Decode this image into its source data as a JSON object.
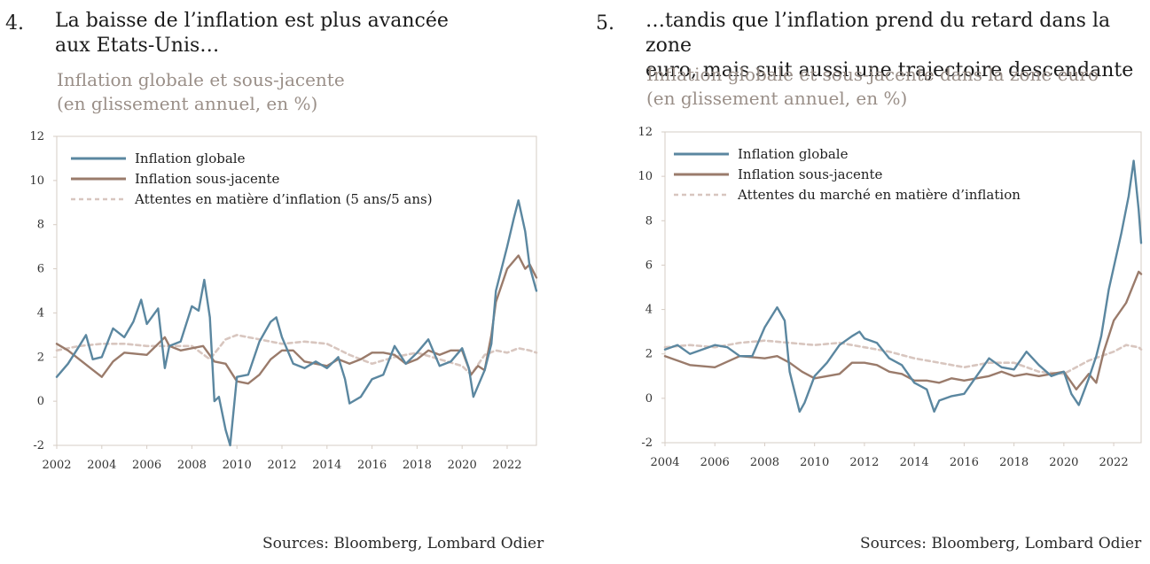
{
  "left": {
    "number": "4.",
    "title_line1": "La baisse de l’inflation est plus avancée",
    "title_line2": "aux Etats-Unis…",
    "subtitle_line1": "Inflation globale et sous-jacente",
    "subtitle_line2": "(en glissement annuel, en %)",
    "source": "Sources: Bloomberg, Lombard Odier"
  },
  "right": {
    "number": "5.",
    "title_line1": "…tandis que l’inflation prend du retard dans la zone",
    "title_line2": "euro, mais suit aussi une trajectoire descendante",
    "subtitle_line1": "Inflation globale et sous-jacente dans la zone euro",
    "subtitle_line2": "(en glissement annuel, en %)",
    "source": "Sources: Bloomberg, Lombard Odier"
  },
  "colors": {
    "headline": "#5b87a0",
    "core": "#9a7b6b",
    "expectations": "#d8c6bf",
    "frame": "#d6ccc4"
  },
  "chart_data": [
    {
      "type": "line",
      "xlim": [
        2002,
        2023.3
      ],
      "ylim": [
        -2,
        12
      ],
      "xticks": [
        2002,
        2004,
        2006,
        2008,
        2010,
        2012,
        2014,
        2016,
        2018,
        2020,
        2022
      ],
      "yticks": [
        -2,
        0,
        2,
        4,
        6,
        8,
        10,
        12
      ],
      "legend_position": "top-left",
      "series": [
        {
          "name": "Inflation globale",
          "style": "solid",
          "x": [
            2002,
            2002.5,
            2003,
            2003.3,
            2003.6,
            2004,
            2004.5,
            2005,
            2005.4,
            2005.75,
            2006,
            2006.5,
            2006.8,
            2007,
            2007.5,
            2008,
            2008.3,
            2008.55,
            2008.8,
            2009,
            2009.2,
            2009.5,
            2009.7,
            2010,
            2010.5,
            2011,
            2011.5,
            2011.75,
            2012,
            2012.5,
            2013,
            2013.5,
            2014,
            2014.5,
            2014.8,
            2015,
            2015.5,
            2016,
            2016.5,
            2017,
            2017.5,
            2018,
            2018.5,
            2019,
            2019.5,
            2020,
            2020.3,
            2020.5,
            2021,
            2021.3,
            2021.5,
            2022,
            2022.3,
            2022.5,
            2022.8,
            2023,
            2023.3
          ],
          "y": [
            1.1,
            1.7,
            2.5,
            3,
            1.9,
            2,
            3.3,
            2.9,
            3.6,
            4.6,
            3.5,
            4.2,
            1.5,
            2.5,
            2.7,
            4.3,
            4.1,
            5.5,
            3.8,
            0,
            0.2,
            -1.3,
            -2,
            1.1,
            1.2,
            2.7,
            3.6,
            3.8,
            2.9,
            1.7,
            1.5,
            1.8,
            1.5,
            2,
            1,
            -0.1,
            0.2,
            1,
            1.2,
            2.5,
            1.7,
            2.2,
            2.8,
            1.6,
            1.8,
            2.4,
            1.5,
            0.2,
            1.4,
            2.6,
            5,
            7,
            8.3,
            9.1,
            7.7,
            6.1,
            5
          ]
        },
        {
          "name": "Inflation sous-jacente",
          "style": "solid",
          "x": [
            2002,
            2002.5,
            2003,
            2003.5,
            2004,
            2004.5,
            2005,
            2006,
            2006.8,
            2007,
            2007.5,
            2008,
            2008.5,
            2009,
            2009.5,
            2010,
            2010.5,
            2011,
            2011.5,
            2012,
            2012.5,
            2013,
            2013.5,
            2014,
            2014.5,
            2015,
            2015.5,
            2016,
            2016.5,
            2017,
            2017.5,
            2018,
            2018.5,
            2019,
            2019.5,
            2020,
            2020.4,
            2020.7,
            2021,
            2021.3,
            2021.5,
            2022,
            2022.5,
            2022.8,
            2023,
            2023.3
          ],
          "y": [
            2.6,
            2.3,
            1.9,
            1.5,
            1.1,
            1.8,
            2.2,
            2.1,
            2.9,
            2.5,
            2.3,
            2.4,
            2.5,
            1.8,
            1.7,
            0.9,
            0.8,
            1.2,
            1.9,
            2.3,
            2.3,
            1.8,
            1.7,
            1.6,
            1.9,
            1.7,
            1.9,
            2.2,
            2.2,
            2.1,
            1.7,
            1.9,
            2.3,
            2.1,
            2.3,
            2.3,
            1.2,
            1.6,
            1.4,
            3,
            4.5,
            6,
            6.6,
            6,
            6.2,
            5.6
          ]
        },
        {
          "name": "Attentes en matière d’inflation (5 ans/5 ans)",
          "style": "dashed",
          "x": [
            2002,
            2003,
            2004,
            2005,
            2006,
            2007,
            2008,
            2008.8,
            2009.5,
            2010,
            2011,
            2012,
            2013,
            2014,
            2015,
            2016,
            2017,
            2018,
            2019,
            2020,
            2020.4,
            2021,
            2021.5,
            2022,
            2022.5,
            2023,
            2023.3
          ],
          "y": [
            2.3,
            2.5,
            2.6,
            2.6,
            2.5,
            2.5,
            2.5,
            1.9,
            2.8,
            3,
            2.8,
            2.6,
            2.7,
            2.6,
            2.1,
            1.7,
            2,
            2.2,
            1.9,
            1.6,
            1.2,
            2.1,
            2.3,
            2.2,
            2.4,
            2.3,
            2.2
          ]
        }
      ]
    },
    {
      "type": "line",
      "xlim": [
        2004,
        2023.1
      ],
      "ylim": [
        -2,
        12
      ],
      "xticks": [
        2004,
        2006,
        2008,
        2010,
        2012,
        2014,
        2016,
        2018,
        2020,
        2022
      ],
      "yticks": [
        -2,
        0,
        2,
        4,
        6,
        8,
        10,
        12
      ],
      "legend_position": "top-left",
      "series": [
        {
          "name": "Inflation globale",
          "style": "solid",
          "x": [
            2004,
            2004.5,
            2005,
            2005.5,
            2006,
            2006.5,
            2007,
            2007.5,
            2008,
            2008.5,
            2008.8,
            2009,
            2009.4,
            2009.6,
            2010,
            2010.5,
            2011,
            2011.5,
            2011.8,
            2012,
            2012.5,
            2013,
            2013.5,
            2014,
            2014.5,
            2014.8,
            2015,
            2015.5,
            2016,
            2016.5,
            2017,
            2017.5,
            2018,
            2018.5,
            2019,
            2019.5,
            2020,
            2020.3,
            2020.6,
            2021,
            2021.3,
            2021.5,
            2021.8,
            2022,
            2022.3,
            2022.6,
            2022.8,
            2023,
            2023.1
          ],
          "y": [
            2.2,
            2.4,
            2,
            2.2,
            2.4,
            2.3,
            1.9,
            1.9,
            3.2,
            4.1,
            3.5,
            1.2,
            -0.6,
            -0.2,
            1,
            1.6,
            2.4,
            2.8,
            3,
            2.7,
            2.5,
            1.8,
            1.5,
            0.7,
            0.4,
            -0.6,
            -0.1,
            0.1,
            0.2,
            1,
            1.8,
            1.4,
            1.3,
            2.1,
            1.5,
            1,
            1.2,
            0.2,
            -0.3,
            0.9,
            1.9,
            2.8,
            4.9,
            5.9,
            7.4,
            9.1,
            10.7,
            8.5,
            7
          ]
        },
        {
          "name": "Inflation sous-jacente",
          "style": "solid",
          "x": [
            2004,
            2005,
            2006,
            2007,
            2008,
            2008.5,
            2009,
            2009.5,
            2010,
            2010.5,
            2011,
            2011.5,
            2012,
            2012.5,
            2013,
            2013.5,
            2014,
            2014.5,
            2015,
            2015.5,
            2016,
            2016.5,
            2017,
            2017.5,
            2018,
            2018.5,
            2019,
            2019.5,
            2020,
            2020.5,
            2021,
            2021.3,
            2021.6,
            2022,
            2022.5,
            2023,
            2023.1
          ],
          "y": [
            1.9,
            1.5,
            1.4,
            1.9,
            1.8,
            1.9,
            1.6,
            1.2,
            0.9,
            1,
            1.1,
            1.6,
            1.6,
            1.5,
            1.2,
            1.1,
            0.8,
            0.8,
            0.7,
            0.9,
            0.8,
            0.9,
            1,
            1.2,
            1,
            1.1,
            1,
            1.1,
            1.2,
            0.4,
            1.1,
            0.7,
            2.1,
            3.5,
            4.3,
            5.7,
            5.6
          ]
        },
        {
          "name": "Attentes du marché en matière d’inflation",
          "style": "dashed",
          "x": [
            2004,
            2005,
            2006,
            2007,
            2008,
            2009,
            2010,
            2011,
            2012,
            2013,
            2014,
            2015,
            2016,
            2017,
            2018,
            2019,
            2020,
            2021,
            2022,
            2022.5,
            2023,
            2023.1
          ],
          "y": [
            2.3,
            2.4,
            2.3,
            2.5,
            2.6,
            2.5,
            2.4,
            2.5,
            2.3,
            2.1,
            1.8,
            1.6,
            1.4,
            1.6,
            1.6,
            1.2,
            1.1,
            1.7,
            2.1,
            2.4,
            2.3,
            2.2
          ]
        }
      ]
    }
  ]
}
